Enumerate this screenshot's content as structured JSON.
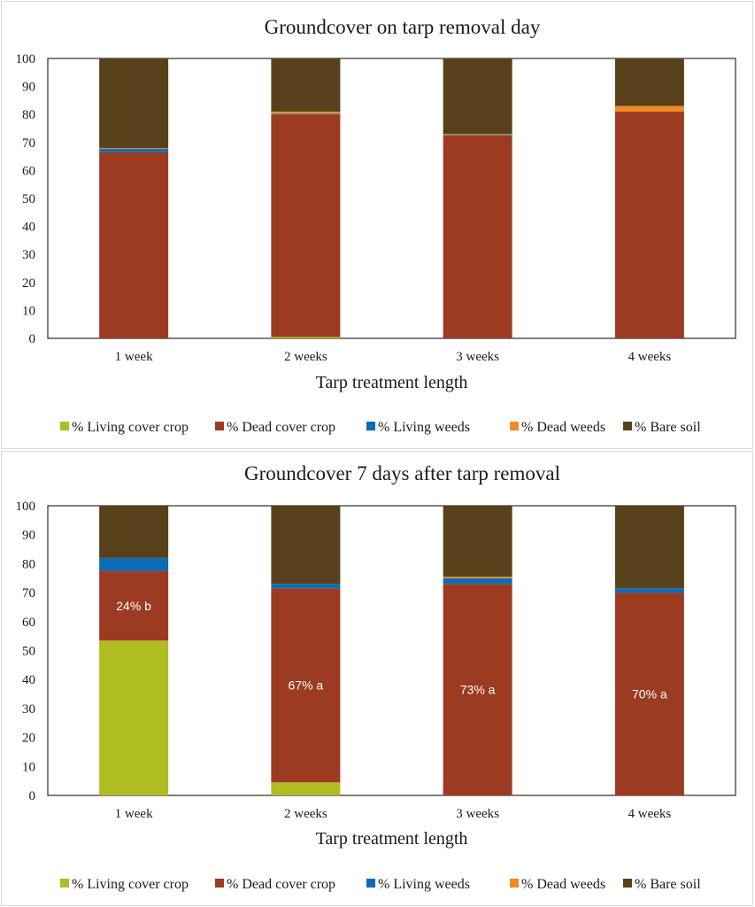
{
  "chart_data": [
    {
      "type": "bar",
      "stacked": true,
      "title": "Groundcover on tarp removal day",
      "xlabel": "Tarp treatment length",
      "ylabel": "",
      "ylim": [
        0,
        100
      ],
      "yticks": [
        "0",
        "10",
        "20",
        "30",
        "40",
        "50",
        "60",
        "70",
        "80",
        "90",
        "100"
      ],
      "categories": [
        "1 week",
        "2 weeks",
        "3 weeks",
        "4 weeks"
      ],
      "series": [
        {
          "name": "% Living cover crop",
          "color": "#afbc22",
          "values": [
            0,
            0.5,
            0,
            0
          ]
        },
        {
          "name": "% Dead cover crop",
          "color": "#9c3b22",
          "values": [
            66.5,
            79.5,
            72.5,
            81
          ]
        },
        {
          "name": "% Living weeds",
          "color": "#0d6cb5",
          "values": [
            1.2,
            0.3,
            0.2,
            0
          ]
        },
        {
          "name": "% Dead weeds",
          "color": "#ef8b22",
          "values": [
            0.3,
            0.7,
            0.3,
            2
          ]
        },
        {
          "name": "% Bare soil",
          "color": "#58411a",
          "values": [
            32,
            19,
            27,
            17
          ]
        }
      ],
      "data_labels": [
        "",
        "",
        "",
        ""
      ],
      "legend": "bottom"
    },
    {
      "type": "bar",
      "stacked": true,
      "title": "Groundcover 7 days after tarp removal",
      "xlabel": "Tarp treatment length",
      "ylabel": "",
      "ylim": [
        0,
        100
      ],
      "yticks": [
        "0",
        "10",
        "20",
        "30",
        "40",
        "50",
        "60",
        "70",
        "80",
        "90",
        "100"
      ],
      "categories": [
        "1 week",
        "2 weeks",
        "3 weeks",
        "4 weeks"
      ],
      "series": [
        {
          "name": "% Living cover crop",
          "color": "#afbc22",
          "values": [
            53.5,
            4.5,
            0,
            0
          ]
        },
        {
          "name": "% Dead cover crop",
          "color": "#9c3b22",
          "values": [
            24,
            67,
            73,
            70
          ]
        },
        {
          "name": "% Living weeds",
          "color": "#0d6cb5",
          "values": [
            4.5,
            1.5,
            2,
            1.5
          ]
        },
        {
          "name": "% Dead weeds",
          "color": "#ef8b22",
          "values": [
            0,
            0,
            0.5,
            0
          ]
        },
        {
          "name": "% Bare soil",
          "color": "#58411a",
          "values": [
            18,
            27,
            24.5,
            28.5
          ]
        }
      ],
      "data_labels": [
        "24% b",
        "67% a",
        "73% a",
        "70% a"
      ],
      "legend": "bottom"
    }
  ]
}
